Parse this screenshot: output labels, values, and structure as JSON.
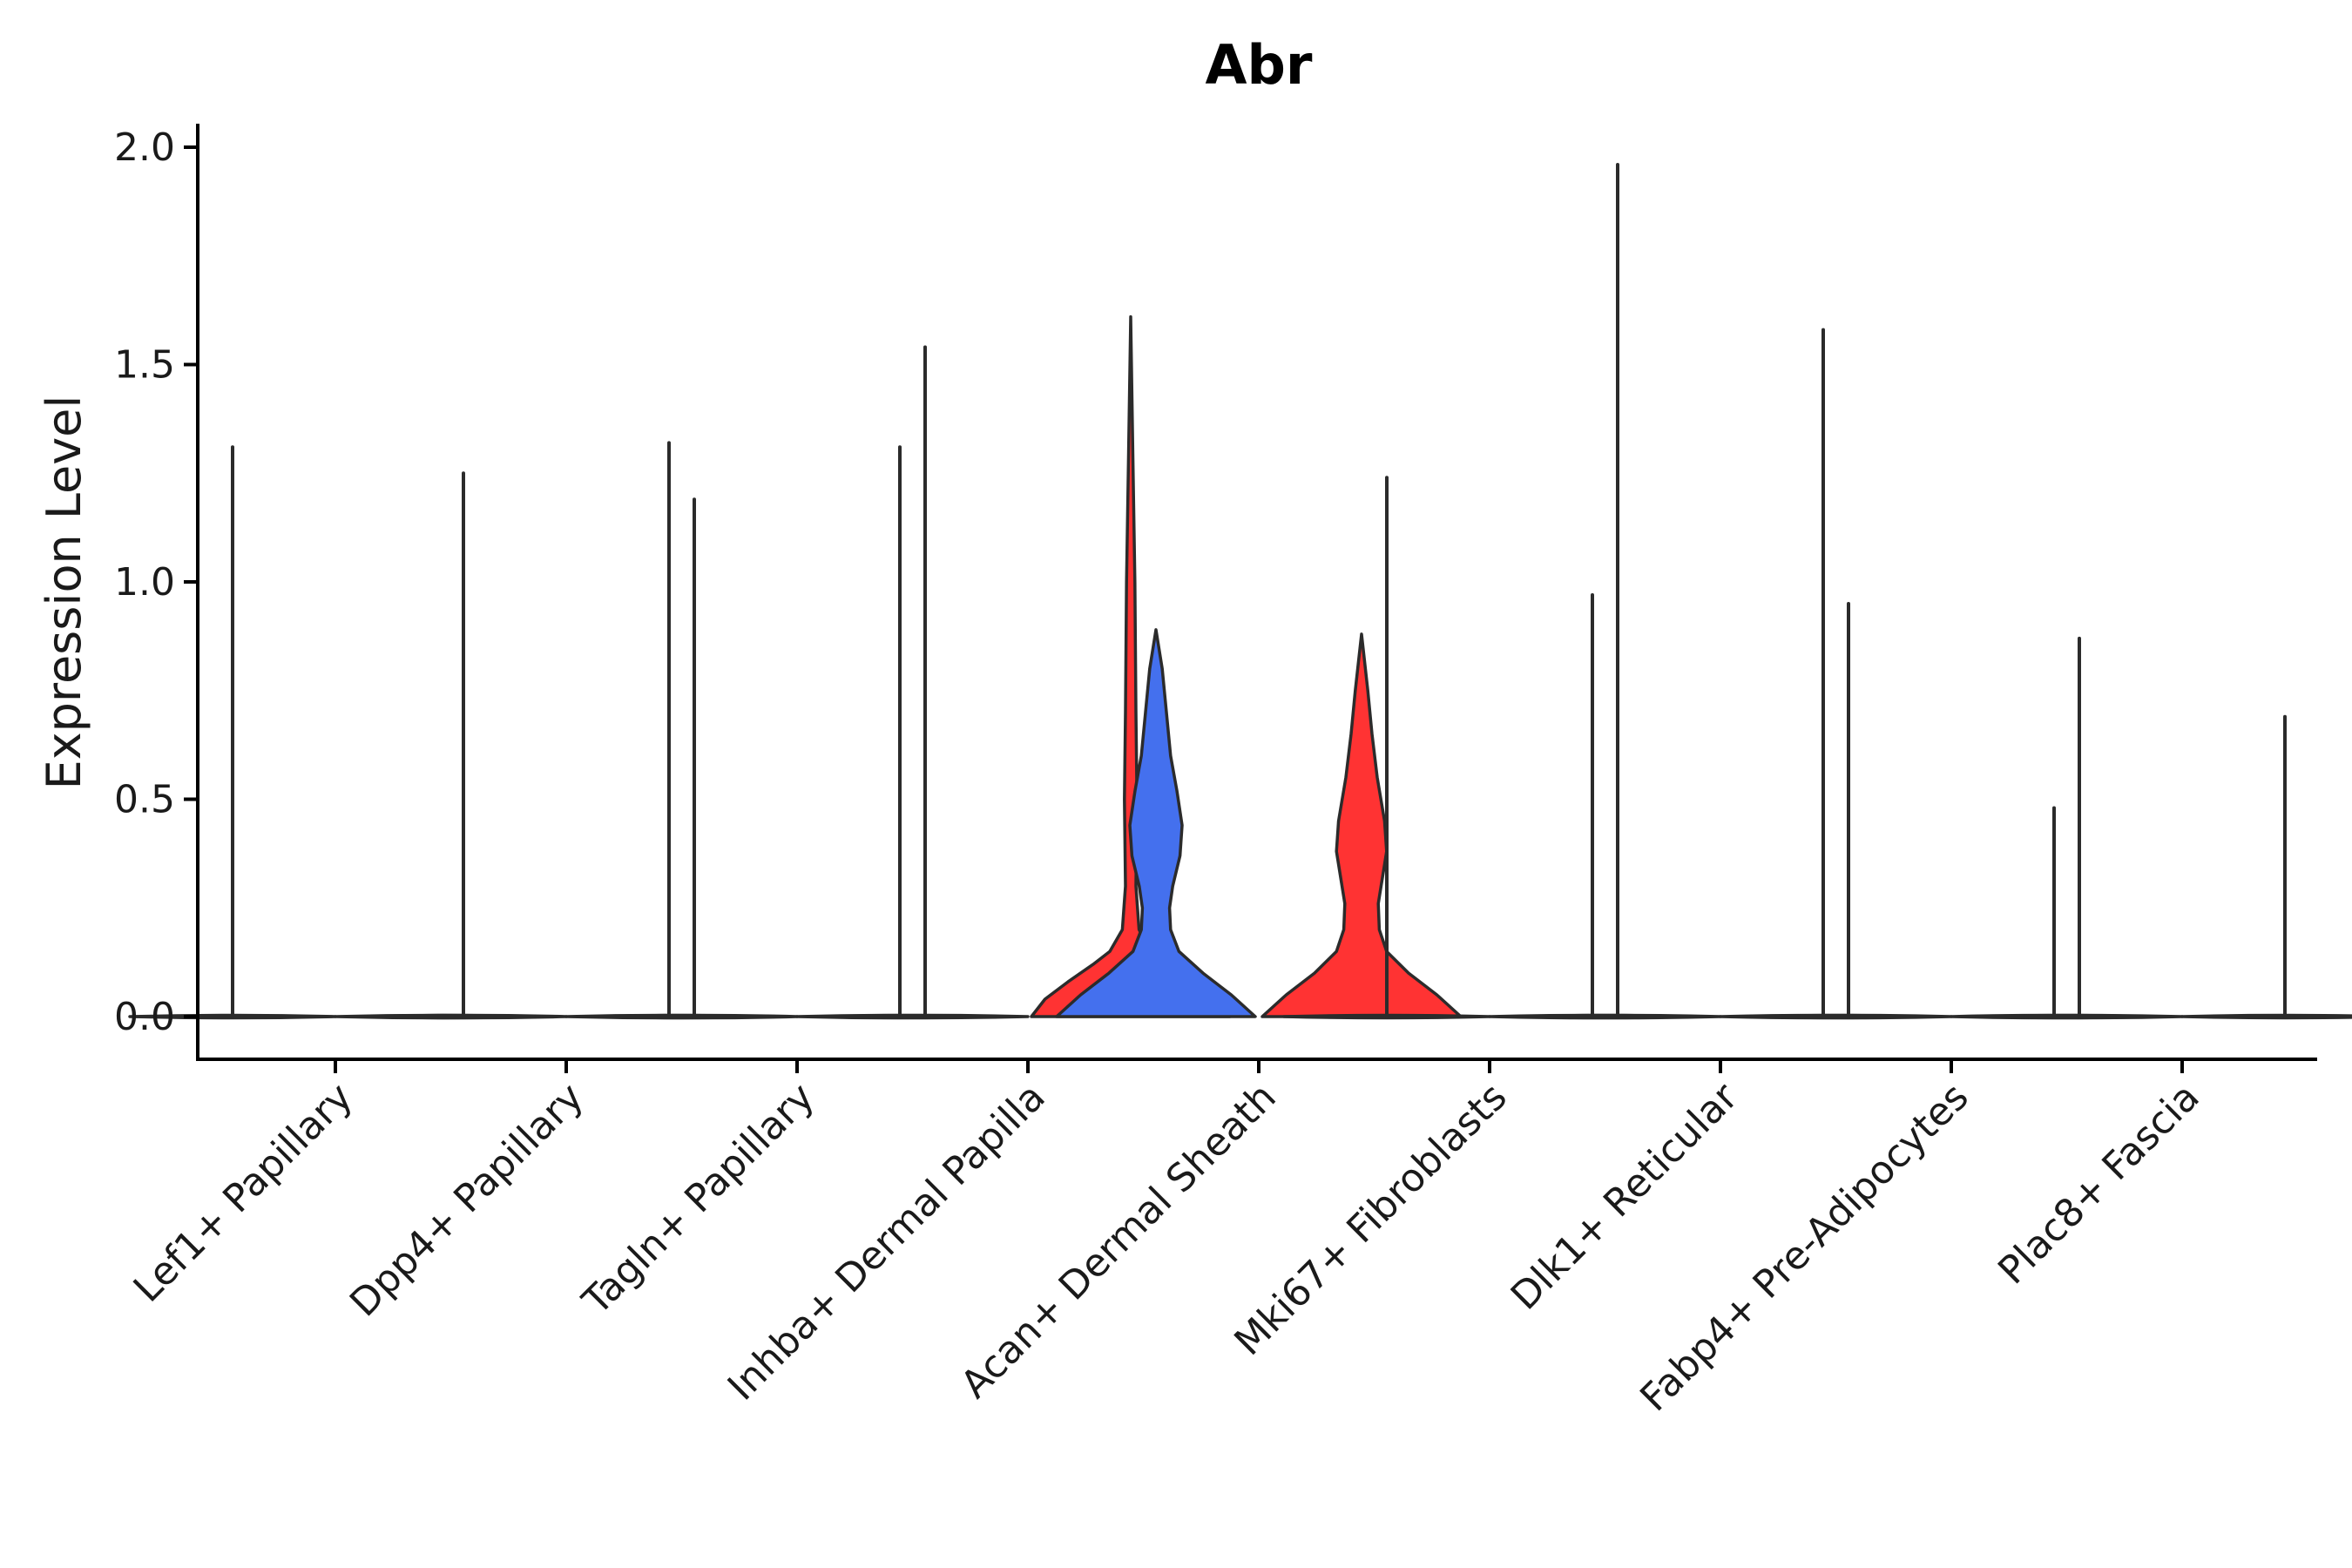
{
  "chart_data": {
    "type": "violin",
    "title": "Abr",
    "xlabel": "",
    "ylabel": "Expression Level",
    "ylim": [
      -0.1,
      2.05
    ],
    "yticks": [
      0.0,
      0.5,
      1.0,
      1.5,
      2.0
    ],
    "ytick_labels": [
      "0.0",
      "0.5",
      "1.0",
      "1.5",
      "2.0"
    ],
    "categories": [
      "Lef1+ Papillary",
      "Dpp4+ Papillary",
      "Tagln+ Papillary",
      "Inhba+ Dermal Papilla",
      "Acan+ Dermal Sheath",
      "Mki67+ Fibroblasts",
      "Dlk1+ Reticular",
      "Fabp4+ Pre-Adipocytes",
      "Plac8+ Fascia"
    ],
    "colors": {
      "low": "#4470ee",
      "high": "#ff3333",
      "neutral": "#ffffff",
      "outline": "#2b2b2b"
    },
    "split": [
      "left",
      "right"
    ],
    "violins": [
      {
        "category": "Lef1+ Papillary",
        "side": "left",
        "max": 1.31,
        "fill": "none"
      },
      {
        "category": "Lef1+ Papillary",
        "side": "right",
        "max": 0.0,
        "fill": "none"
      },
      {
        "category": "Dpp4+ Papillary",
        "side": "left",
        "max": 1.25,
        "fill": "none"
      },
      {
        "category": "Dpp4+ Papillary",
        "side": "right",
        "max": 1.32,
        "fill": "none"
      },
      {
        "category": "Tagln+ Papillary",
        "side": "left",
        "max": 1.19,
        "fill": "none"
      },
      {
        "category": "Tagln+ Papillary",
        "side": "right",
        "max": 1.31,
        "fill": "none"
      },
      {
        "category": "Inhba+ Dermal Papilla",
        "side": "left",
        "max": 1.54,
        "fill": "none"
      },
      {
        "category": "Inhba+ Dermal Papilla",
        "side": "right",
        "max": 1.61,
        "fill": "high",
        "profile": [
          [
            0.0,
            0.95
          ],
          [
            0.04,
            0.82
          ],
          [
            0.08,
            0.6
          ],
          [
            0.12,
            0.36
          ],
          [
            0.15,
            0.2
          ],
          [
            0.2,
            0.08
          ],
          [
            0.3,
            0.05
          ],
          [
            0.5,
            0.06
          ],
          [
            0.7,
            0.05
          ],
          [
            1.0,
            0.04
          ],
          [
            1.3,
            0.02
          ],
          [
            1.61,
            0.0
          ]
        ]
      },
      {
        "category": "Acan+ Dermal Sheath",
        "side": "left",
        "max": 0.89,
        "fill": "low",
        "profile": [
          [
            0.0,
            0.95
          ],
          [
            0.05,
            0.72
          ],
          [
            0.1,
            0.45
          ],
          [
            0.15,
            0.22
          ],
          [
            0.2,
            0.14
          ],
          [
            0.25,
            0.13
          ],
          [
            0.3,
            0.16
          ],
          [
            0.37,
            0.23
          ],
          [
            0.44,
            0.25
          ],
          [
            0.52,
            0.2
          ],
          [
            0.6,
            0.14
          ],
          [
            0.7,
            0.1
          ],
          [
            0.8,
            0.06
          ],
          [
            0.89,
            0.0
          ]
        ]
      },
      {
        "category": "Acan+ Dermal Sheath",
        "side": "right",
        "max": 0.88,
        "fill": "high",
        "profile": [
          [
            0.0,
            0.95
          ],
          [
            0.05,
            0.72
          ],
          [
            0.1,
            0.45
          ],
          [
            0.15,
            0.24
          ],
          [
            0.2,
            0.17
          ],
          [
            0.26,
            0.16
          ],
          [
            0.32,
            0.2
          ],
          [
            0.38,
            0.24
          ],
          [
            0.45,
            0.22
          ],
          [
            0.55,
            0.15
          ],
          [
            0.65,
            0.1
          ],
          [
            0.75,
            0.06
          ],
          [
            0.88,
            0.0
          ]
        ]
      },
      {
        "category": "Mki67+ Fibroblasts",
        "side": "left",
        "max": 1.24,
        "fill": "none"
      },
      {
        "category": "Mki67+ Fibroblasts",
        "side": "right",
        "max": 0.97,
        "fill": "none"
      },
      {
        "category": "Dlk1+ Reticular",
        "side": "left",
        "max": 1.96,
        "fill": "none"
      },
      {
        "category": "Dlk1+ Reticular",
        "side": "right",
        "max": 1.58,
        "fill": "none"
      },
      {
        "category": "Fabp4+ Pre-Adipocytes",
        "side": "left",
        "max": 0.95,
        "fill": "none"
      },
      {
        "category": "Fabp4+ Pre-Adipocytes",
        "side": "right",
        "max": 0.48,
        "fill": "none"
      },
      {
        "category": "Plac8+ Fascia",
        "side": "left",
        "max": 0.87,
        "fill": "none"
      },
      {
        "category": "Plac8+ Fascia",
        "side": "right",
        "max": 0.69,
        "fill": "none"
      }
    ]
  }
}
